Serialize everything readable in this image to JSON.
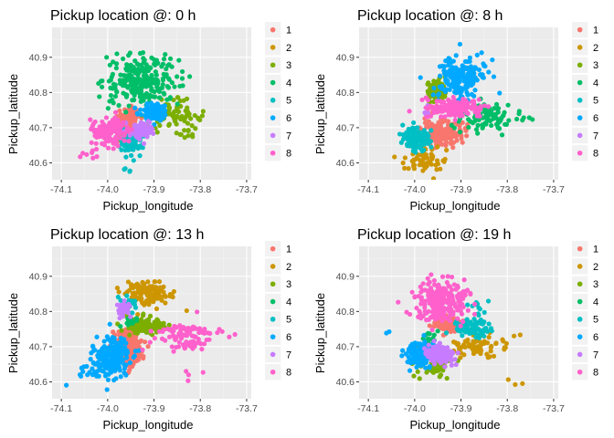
{
  "colors": {
    "panel_background": "#ebebeb",
    "grid_major": "#ffffff",
    "grid_minor": "#f5f5f5",
    "legend_key_background": "#f2f2f2",
    "tick_color": "#333333",
    "cluster_palette": [
      "#F8766D",
      "#CD9600",
      "#7CAE00",
      "#00BE67",
      "#00BFC4",
      "#00A9FF",
      "#C77CFF",
      "#FF61CC"
    ]
  },
  "chart_data": [
    {
      "type": "scatter",
      "title": "Pickup location @: 0 h",
      "xlabel": "Pickup_longitude",
      "ylabel": "Pickup_latitude",
      "xlim": [
        -74.12,
        -73.69
      ],
      "ylim": [
        40.552,
        40.985
      ],
      "x_ticks": [
        -74.1,
        -74.0,
        -73.9,
        -73.8,
        -73.7
      ],
      "x_tick_labels": [
        "-74.1",
        "-74.0",
        "-73.9",
        "-73.8",
        "-73.7"
      ],
      "y_ticks": [
        40.6,
        40.7,
        40.8,
        40.9
      ],
      "y_tick_labels": [
        "40.6",
        "40.7",
        "40.8",
        "40.9"
      ],
      "grid": true,
      "legend_position": "right",
      "legend_entries": [
        "1",
        "2",
        "3",
        "4",
        "5",
        "6",
        "7",
        "8"
      ],
      "series": [
        {
          "name": "1",
          "clusters": [
            {
              "cx": -73.955,
              "cy": 40.725,
              "sx": 0.012,
              "sy": 0.015,
              "n": 130
            }
          ]
        },
        {
          "name": "2",
          "clusters": [
            {
              "cx": -73.97,
              "cy": 40.665,
              "sx": 0.006,
              "sy": 0.007,
              "n": 10
            }
          ]
        },
        {
          "name": "3",
          "clusters": [
            {
              "cx": -73.86,
              "cy": 40.735,
              "sx": 0.03,
              "sy": 0.02,
              "n": 90
            },
            {
              "cx": -73.82,
              "cy": 40.68,
              "sx": 0.01,
              "sy": 0.01,
              "n": 5
            }
          ]
        },
        {
          "name": "4",
          "clusters": [
            {
              "cx": -73.925,
              "cy": 40.835,
              "sx": 0.04,
              "sy": 0.035,
              "n": 240
            }
          ]
        },
        {
          "name": "5",
          "clusters": [
            {
              "cx": -73.95,
              "cy": 40.66,
              "sx": 0.012,
              "sy": 0.018,
              "n": 100
            },
            {
              "cx": -73.955,
              "cy": 40.58,
              "sx": 0.006,
              "sy": 0.006,
              "n": 4
            }
          ]
        },
        {
          "name": "6",
          "clusters": [
            {
              "cx": -73.9,
              "cy": 40.745,
              "sx": 0.014,
              "sy": 0.012,
              "n": 110
            }
          ]
        },
        {
          "name": "7",
          "clusters": [
            {
              "cx": -73.925,
              "cy": 40.695,
              "sx": 0.012,
              "sy": 0.012,
              "n": 90
            }
          ]
        },
        {
          "name": "8",
          "clusters": [
            {
              "cx": -73.993,
              "cy": 40.69,
              "sx": 0.018,
              "sy": 0.02,
              "n": 130
            },
            {
              "cx": -74.04,
              "cy": 40.63,
              "sx": 0.012,
              "sy": 0.012,
              "n": 8
            }
          ]
        }
      ]
    },
    {
      "type": "scatter",
      "title": "Pickup location @: 8 h",
      "xlabel": "Pickup_longitude",
      "ylabel": "Pickup_latitude",
      "xlim": [
        -74.12,
        -73.69
      ],
      "ylim": [
        40.552,
        40.985
      ],
      "x_ticks": [
        -74.1,
        -74.0,
        -73.9,
        -73.8,
        -73.7
      ],
      "x_tick_labels": [
        "-74.1",
        "-74.0",
        "-73.9",
        "-73.8",
        "-73.7"
      ],
      "y_ticks": [
        40.6,
        40.7,
        40.8,
        40.9
      ],
      "y_tick_labels": [
        "40.6",
        "40.7",
        "40.8",
        "40.9"
      ],
      "grid": true,
      "legend_position": "right",
      "legend_entries": [
        "1",
        "2",
        "3",
        "4",
        "5",
        "6",
        "7",
        "8"
      ],
      "series": [
        {
          "name": "1",
          "clusters": [
            {
              "cx": -73.94,
              "cy": 40.685,
              "sx": 0.022,
              "sy": 0.018,
              "n": 170
            }
          ]
        },
        {
          "name": "2",
          "clusters": [
            {
              "cx": -73.98,
              "cy": 40.61,
              "sx": 0.025,
              "sy": 0.018,
              "n": 60
            }
          ]
        },
        {
          "name": "3",
          "clusters": [
            {
              "cx": -73.955,
              "cy": 40.805,
              "sx": 0.01,
              "sy": 0.016,
              "n": 110
            }
          ]
        },
        {
          "name": "4",
          "clusters": [
            {
              "cx": -73.84,
              "cy": 40.73,
              "sx": 0.03,
              "sy": 0.02,
              "n": 90
            },
            {
              "cx": -73.75,
              "cy": 40.73,
              "sx": 0.01,
              "sy": 0.008,
              "n": 3
            }
          ]
        },
        {
          "name": "5",
          "clusters": [
            {
              "cx": -73.995,
              "cy": 40.67,
              "sx": 0.015,
              "sy": 0.018,
              "n": 130
            }
          ]
        },
        {
          "name": "6",
          "clusters": [
            {
              "cx": -73.9,
              "cy": 40.84,
              "sx": 0.026,
              "sy": 0.03,
              "n": 190
            }
          ]
        },
        {
          "name": "7",
          "clusters": [
            {
              "cx": -73.97,
              "cy": 40.745,
              "sx": 0.006,
              "sy": 0.008,
              "n": 10
            }
          ]
        },
        {
          "name": "8",
          "clusters": [
            {
              "cx": -73.915,
              "cy": 40.755,
              "sx": 0.028,
              "sy": 0.013,
              "n": 160
            }
          ]
        }
      ]
    },
    {
      "type": "scatter",
      "title": "Pickup location @: 13 h",
      "xlabel": "Pickup_longitude",
      "ylabel": "Pickup_latitude",
      "xlim": [
        -74.12,
        -73.69
      ],
      "ylim": [
        40.552,
        40.985
      ],
      "x_ticks": [
        -74.1,
        -74.0,
        -73.9,
        -73.8,
        -73.7
      ],
      "x_tick_labels": [
        "-74.1",
        "-74.0",
        "-73.9",
        "-73.8",
        "-73.7"
      ],
      "y_ticks": [
        40.6,
        40.7,
        40.8,
        40.9
      ],
      "y_tick_labels": [
        "40.6",
        "40.7",
        "40.8",
        "40.9"
      ],
      "grid": true,
      "legend_position": "right",
      "legend_entries": [
        "1",
        "2",
        "3",
        "4",
        "5",
        "6",
        "7",
        "8"
      ],
      "series": [
        {
          "name": "1",
          "clusters": [
            {
              "cx": -73.955,
              "cy": 40.7,
              "sx": 0.015,
              "sy": 0.028,
              "n": 220
            }
          ]
        },
        {
          "name": "2",
          "clusters": [
            {
              "cx": -73.91,
              "cy": 40.85,
              "sx": 0.025,
              "sy": 0.02,
              "n": 130
            }
          ]
        },
        {
          "name": "3",
          "clusters": [
            {
              "cx": -73.92,
              "cy": 40.755,
              "sx": 0.02,
              "sy": 0.012,
              "n": 120
            }
          ]
        },
        {
          "name": "4",
          "clusters": [
            {
              "cx": -73.95,
              "cy": 40.775,
              "sx": 0.008,
              "sy": 0.008,
              "n": 15
            }
          ]
        },
        {
          "name": "5",
          "clusters": [
            {
              "cx": -73.955,
              "cy": 40.82,
              "sx": 0.01,
              "sy": 0.012,
              "n": 30
            }
          ]
        },
        {
          "name": "6",
          "clusters": [
            {
              "cx": -73.99,
              "cy": 40.67,
              "sx": 0.02,
              "sy": 0.028,
              "n": 200
            },
            {
              "cx": -74.05,
              "cy": 40.625,
              "sx": 0.018,
              "sy": 0.012,
              "n": 15
            }
          ]
        },
        {
          "name": "7",
          "clusters": [
            {
              "cx": -73.965,
              "cy": 40.805,
              "sx": 0.008,
              "sy": 0.012,
              "n": 40
            }
          ]
        },
        {
          "name": "8",
          "clusters": [
            {
              "cx": -73.83,
              "cy": 40.725,
              "sx": 0.035,
              "sy": 0.022,
              "n": 100
            },
            {
              "cx": -73.82,
              "cy": 40.62,
              "sx": 0.03,
              "sy": 0.015,
              "n": 4
            }
          ]
        }
      ]
    },
    {
      "type": "scatter",
      "title": "Pickup location @: 19 h",
      "xlabel": "Pickup_longitude",
      "ylabel": "Pickup_latitude",
      "xlim": [
        -74.12,
        -73.69
      ],
      "ylim": [
        40.552,
        40.985
      ],
      "x_ticks": [
        -74.1,
        -74.0,
        -73.9,
        -73.8,
        -73.7
      ],
      "x_tick_labels": [
        "-74.1",
        "-74.0",
        "-73.9",
        "-73.8",
        "-73.7"
      ],
      "y_ticks": [
        40.6,
        40.7,
        40.8,
        40.9
      ],
      "y_tick_labels": [
        "40.6",
        "40.7",
        "40.8",
        "40.9"
      ],
      "grid": true,
      "legend_position": "right",
      "legend_entries": [
        "1",
        "2",
        "3",
        "4",
        "5",
        "6",
        "7",
        "8"
      ],
      "series": [
        {
          "name": "1",
          "clusters": [
            {
              "cx": -73.93,
              "cy": 40.765,
              "sx": 0.014,
              "sy": 0.012,
              "n": 130
            }
          ]
        },
        {
          "name": "2",
          "clusters": [
            {
              "cx": -73.86,
              "cy": 40.7,
              "sx": 0.03,
              "sy": 0.018,
              "n": 70
            },
            {
              "cx": -73.79,
              "cy": 40.6,
              "sx": 0.02,
              "sy": 0.008,
              "n": 3
            }
          ]
        },
        {
          "name": "3",
          "clusters": [
            {
              "cx": -73.96,
              "cy": 40.65,
              "sx": 0.02,
              "sy": 0.02,
              "n": 60
            }
          ]
        },
        {
          "name": "4",
          "clusters": [
            {
              "cx": -73.965,
              "cy": 40.725,
              "sx": 0.007,
              "sy": 0.007,
              "n": 15
            }
          ]
        },
        {
          "name": "5",
          "clusters": [
            {
              "cx": -73.88,
              "cy": 40.755,
              "sx": 0.02,
              "sy": 0.012,
              "n": 80
            },
            {
              "cx": -73.86,
              "cy": 40.82,
              "sx": 0.012,
              "sy": 0.012,
              "n": 10
            }
          ]
        },
        {
          "name": "6",
          "clusters": [
            {
              "cx": -73.99,
              "cy": 40.68,
              "sx": 0.016,
              "sy": 0.018,
              "n": 150
            },
            {
              "cx": -74.06,
              "cy": 40.735,
              "sx": 0.006,
              "sy": 0.006,
              "n": 2
            }
          ]
        },
        {
          "name": "7",
          "clusters": [
            {
              "cx": -73.945,
              "cy": 40.68,
              "sx": 0.014,
              "sy": 0.013,
              "n": 160
            }
          ]
        },
        {
          "name": "8",
          "clusters": [
            {
              "cx": -73.94,
              "cy": 40.83,
              "sx": 0.03,
              "sy": 0.03,
              "n": 240
            }
          ]
        }
      ]
    }
  ]
}
